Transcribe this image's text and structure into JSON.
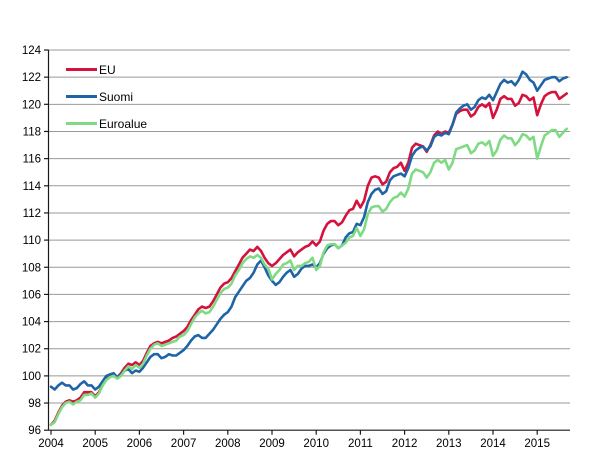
{
  "chart_data": {
    "type": "line",
    "title": "",
    "xlabel": "",
    "ylabel": "",
    "x_range": {
      "start": "2004-01",
      "end": "2015-09",
      "frequency": "monthly"
    },
    "ylim": [
      96,
      124
    ],
    "ytick_step": 2,
    "grid": "horizontal",
    "legend_position": "top-left-inside",
    "y_tick_labels": [
      "96",
      "98",
      "100",
      "102",
      "104",
      "106",
      "108",
      "110",
      "112",
      "114",
      "116",
      "118",
      "120",
      "122",
      "124"
    ],
    "x_tick_labels": [
      "2004",
      "2005",
      "2006",
      "2007",
      "2008",
      "2009",
      "2010",
      "2011",
      "2012",
      "2013",
      "2014",
      "2015"
    ],
    "axis_color": "#1a1a1a",
    "grid_color": "#999999",
    "series": [
      {
        "name": "EU",
        "color": "#d5113d",
        "values": [
          96.4,
          96.7,
          97.3,
          97.8,
          98.1,
          98.2,
          98.1,
          98.2,
          98.4,
          98.8,
          98.8,
          98.8,
          98.5,
          98.8,
          99.3,
          99.8,
          100.0,
          100.1,
          99.9,
          100.2,
          100.6,
          100.9,
          100.8,
          101.0,
          100.8,
          101.1,
          101.7,
          102.2,
          102.4,
          102.5,
          102.4,
          102.5,
          102.6,
          102.8,
          102.9,
          103.1,
          103.3,
          103.6,
          104.1,
          104.5,
          104.9,
          105.1,
          105.0,
          105.1,
          105.5,
          106.0,
          106.5,
          106.8,
          106.9,
          107.2,
          107.7,
          108.2,
          108.7,
          109.0,
          109.3,
          109.2,
          109.5,
          109.2,
          108.7,
          108.3,
          108.1,
          108.3,
          108.6,
          108.9,
          109.1,
          109.3,
          108.8,
          109.1,
          109.3,
          109.5,
          109.6,
          109.9,
          109.6,
          109.9,
          110.7,
          111.2,
          111.4,
          111.4,
          111.1,
          111.3,
          111.8,
          112.2,
          112.3,
          112.9,
          112.4,
          112.9,
          114.0,
          114.6,
          114.7,
          114.6,
          114.1,
          114.3,
          115.0,
          115.3,
          115.4,
          115.7,
          115.1,
          115.7,
          116.8,
          117.1,
          117.0,
          116.9,
          116.5,
          117.0,
          117.7,
          118.0,
          117.8,
          118.0,
          117.9,
          118.5,
          119.3,
          119.5,
          119.6,
          119.6,
          119.1,
          119.3,
          119.8,
          120.0,
          119.8,
          120.1,
          119.0,
          119.6,
          120.4,
          120.6,
          120.4,
          120.4,
          119.9,
          120.1,
          120.7,
          120.6,
          120.3,
          120.5,
          119.2,
          120.0,
          120.6,
          120.8,
          120.9,
          120.9,
          120.4,
          120.6,
          120.8
        ]
      },
      {
        "name": "Suomi",
        "color": "#1e64a7",
        "values": [
          99.2,
          99.0,
          99.3,
          99.5,
          99.3,
          99.3,
          99.0,
          99.1,
          99.4,
          99.6,
          99.3,
          99.3,
          99.0,
          99.2,
          99.6,
          100.0,
          100.1,
          100.2,
          99.9,
          100.1,
          100.4,
          100.5,
          100.2,
          100.4,
          100.3,
          100.6,
          101.0,
          101.4,
          101.6,
          101.6,
          101.3,
          101.4,
          101.6,
          101.5,
          101.5,
          101.7,
          101.9,
          102.2,
          102.6,
          102.9,
          103.0,
          102.8,
          102.8,
          103.1,
          103.4,
          103.8,
          104.2,
          104.5,
          104.7,
          105.1,
          105.8,
          106.2,
          106.6,
          107.0,
          107.2,
          107.6,
          108.2,
          108.5,
          108.0,
          107.4,
          107.0,
          106.7,
          106.9,
          107.3,
          107.6,
          107.8,
          107.3,
          107.5,
          107.9,
          108.1,
          108.1,
          108.2,
          108.0,
          108.3,
          109.0,
          109.4,
          109.6,
          109.7,
          109.4,
          109.6,
          110.2,
          110.5,
          110.6,
          111.2,
          111.1,
          111.7,
          112.8,
          113.4,
          113.7,
          113.8,
          113.4,
          113.6,
          114.4,
          114.7,
          114.8,
          114.9,
          114.7,
          115.3,
          116.2,
          116.6,
          116.8,
          116.9,
          116.6,
          116.9,
          117.6,
          117.8,
          117.7,
          117.9,
          117.8,
          118.5,
          119.4,
          119.7,
          119.9,
          120.0,
          119.6,
          119.8,
          120.3,
          120.5,
          120.4,
          120.7,
          120.3,
          120.9,
          121.5,
          121.8,
          121.6,
          121.7,
          121.4,
          121.8,
          122.4,
          122.2,
          121.8,
          121.6,
          121.0,
          121.4,
          121.8,
          121.9,
          122.0,
          122.0,
          121.7,
          121.9,
          122.0
        ]
      },
      {
        "name": "Euroalue",
        "color": "#7edb84",
        "values": [
          96.4,
          96.6,
          97.2,
          97.7,
          98.0,
          98.1,
          97.9,
          98.1,
          98.2,
          98.6,
          98.6,
          98.7,
          98.4,
          98.7,
          99.3,
          99.7,
          99.9,
          100.0,
          99.8,
          100.0,
          100.4,
          100.7,
          100.5,
          100.8,
          100.6,
          100.9,
          101.5,
          102.0,
          102.3,
          102.4,
          102.2,
          102.3,
          102.4,
          102.5,
          102.6,
          102.9,
          103.0,
          103.3,
          103.8,
          104.3,
          104.6,
          104.8,
          104.6,
          104.7,
          105.1,
          105.6,
          106.1,
          106.4,
          106.5,
          106.8,
          107.4,
          107.8,
          108.3,
          108.6,
          108.8,
          108.7,
          108.9,
          108.7,
          108.2,
          107.9,
          107.1,
          107.5,
          107.8,
          108.2,
          108.3,
          108.5,
          107.8,
          108.1,
          108.1,
          108.3,
          108.4,
          108.7,
          107.8,
          108.1,
          109.1,
          109.6,
          109.7,
          109.7,
          109.4,
          109.6,
          109.8,
          110.2,
          110.3,
          110.9,
          110.3,
          110.8,
          111.9,
          112.4,
          112.5,
          112.5,
          112.1,
          112.3,
          112.8,
          113.1,
          113.2,
          113.5,
          113.2,
          113.8,
          114.9,
          115.2,
          115.1,
          115.0,
          114.6,
          115.0,
          115.7,
          115.9,
          115.7,
          115.9,
          115.2,
          115.7,
          116.7,
          116.8,
          116.9,
          117.0,
          116.4,
          116.6,
          117.1,
          117.2,
          117.0,
          117.3,
          116.2,
          116.6,
          117.4,
          117.7,
          117.5,
          117.5,
          117.0,
          117.3,
          117.8,
          117.7,
          117.4,
          117.6,
          116.0,
          116.9,
          117.7,
          117.9,
          118.1,
          118.1,
          117.6,
          117.9,
          118.2
        ]
      }
    ]
  }
}
